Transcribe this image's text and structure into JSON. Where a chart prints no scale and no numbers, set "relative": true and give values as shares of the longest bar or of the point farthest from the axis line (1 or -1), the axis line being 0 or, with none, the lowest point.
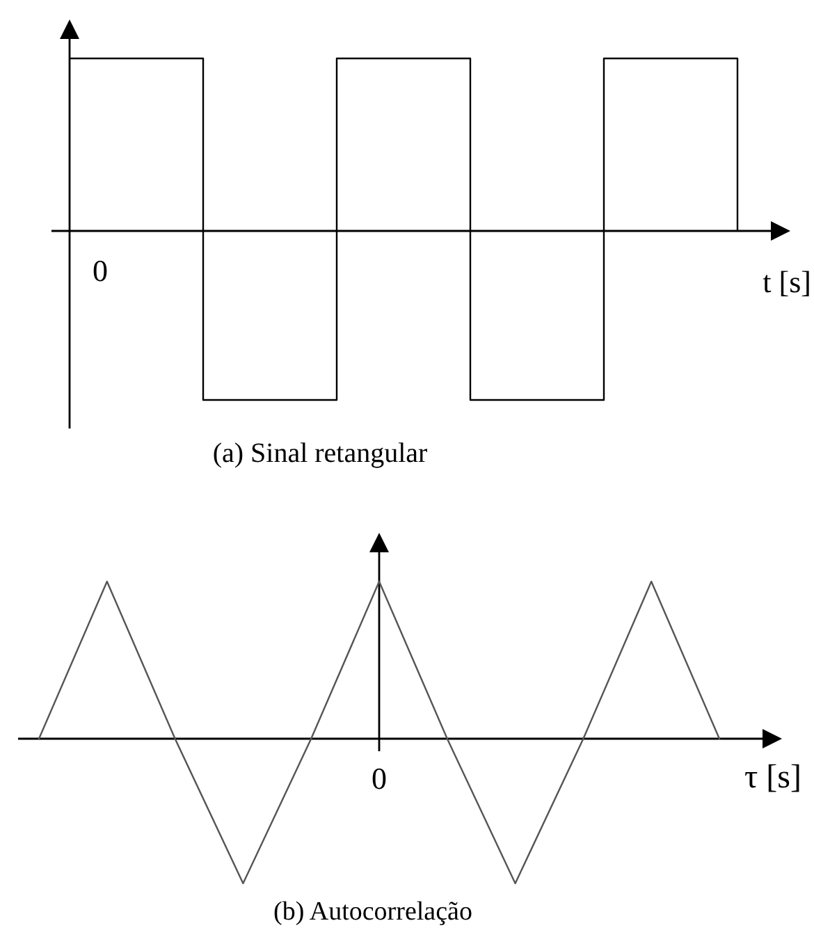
{
  "chart_data": [
    {
      "type": "step",
      "title": "(a) Sinal retangular",
      "xlabel": "t [s]",
      "categories": [
        null,
        null,
        null,
        null,
        null,
        null
      ],
      "values": [
        1,
        -0.98,
        1,
        -0.98,
        1,
        0
      ],
      "color": "#000000",
      "relative": true,
      "annotations": [
        "0"
      ]
    },
    {
      "type": "line",
      "title": "(b) Autocorrelação",
      "xlabel": "τ [s]",
      "categories": [
        null,
        null,
        null,
        null,
        null,
        null,
        null,
        null,
        null,
        null,
        null
      ],
      "values": [
        0,
        1,
        0,
        -0.92,
        0,
        1,
        0,
        -0.92,
        0,
        1,
        0
      ],
      "color": "#555555",
      "relative": true,
      "annotations": [
        "0"
      ]
    }
  ]
}
